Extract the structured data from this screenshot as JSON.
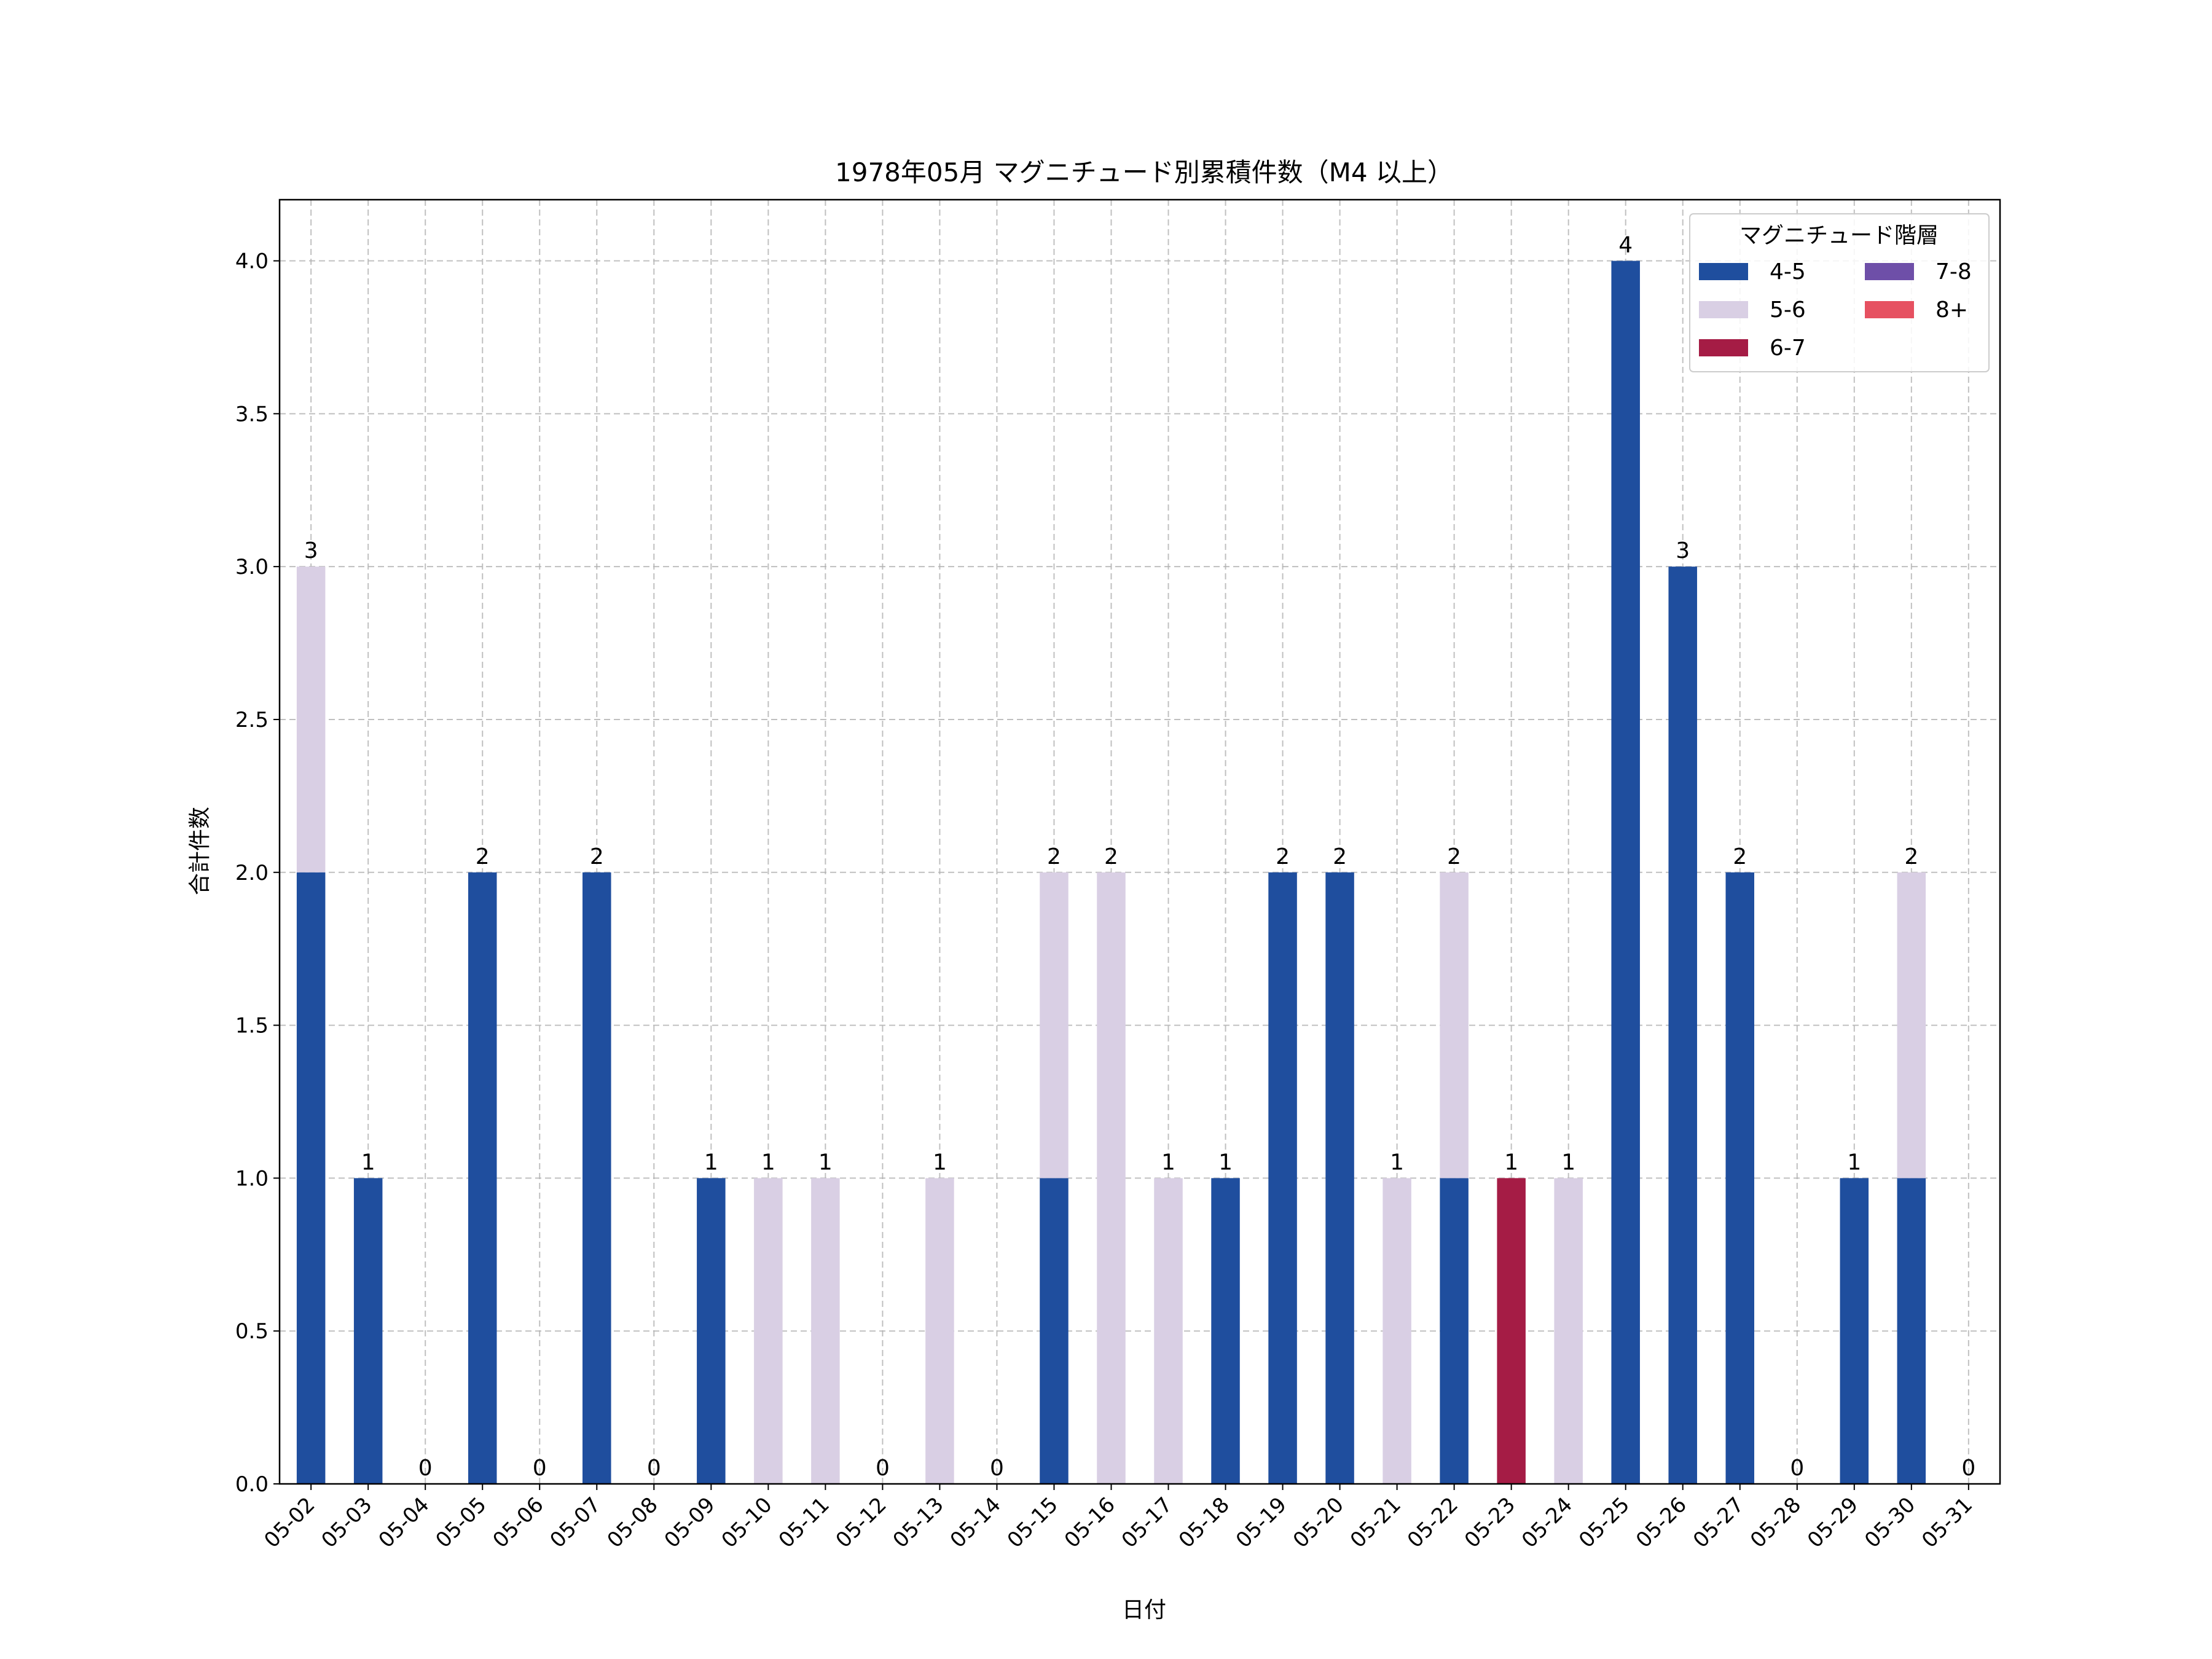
{
  "chart_data": {
    "type": "bar",
    "stacked": true,
    "title": "1978年05月 マグニチュード別累積件数（M4 以上）",
    "xlabel": "日付",
    "ylabel": "合計件数",
    "ylim": [
      0,
      4.2
    ],
    "yticks": [
      "0.0",
      "0.5",
      "1.0",
      "1.5",
      "2.0",
      "2.5",
      "3.0",
      "3.5",
      "4.0"
    ],
    "grid": true,
    "legend": {
      "title": "マグニチュード階層",
      "placement": "top-right",
      "columns": 2
    },
    "categories": [
      "05-02",
      "05-03",
      "05-04",
      "05-05",
      "05-06",
      "05-07",
      "05-08",
      "05-09",
      "05-10",
      "05-11",
      "05-12",
      "05-13",
      "05-14",
      "05-15",
      "05-16",
      "05-17",
      "05-18",
      "05-19",
      "05-20",
      "05-21",
      "05-22",
      "05-23",
      "05-24",
      "05-25",
      "05-26",
      "05-27",
      "05-28",
      "05-29",
      "05-30",
      "05-31"
    ],
    "series": [
      {
        "name": "4-5",
        "color": "#1f4e9e",
        "values": [
          2,
          1,
          0,
          2,
          0,
          2,
          0,
          1,
          0,
          0,
          0,
          0,
          0,
          1,
          0,
          0,
          1,
          2,
          2,
          0,
          1,
          0,
          0,
          4,
          3,
          2,
          0,
          1,
          1,
          0
        ]
      },
      {
        "name": "5-6",
        "color": "#d9cfe4",
        "values": [
          1,
          0,
          0,
          0,
          0,
          0,
          0,
          0,
          1,
          1,
          0,
          1,
          0,
          1,
          2,
          1,
          0,
          0,
          0,
          1,
          1,
          0,
          1,
          0,
          0,
          0,
          0,
          0,
          1,
          0
        ]
      },
      {
        "name": "6-7",
        "color": "#a51c45",
        "values": [
          0,
          0,
          0,
          0,
          0,
          0,
          0,
          0,
          0,
          0,
          0,
          0,
          0,
          0,
          0,
          0,
          0,
          0,
          0,
          0,
          0,
          1,
          0,
          0,
          0,
          0,
          0,
          0,
          0,
          0
        ]
      },
      {
        "name": "7-8",
        "color": "#6e4fa8",
        "values": [
          0,
          0,
          0,
          0,
          0,
          0,
          0,
          0,
          0,
          0,
          0,
          0,
          0,
          0,
          0,
          0,
          0,
          0,
          0,
          0,
          0,
          0,
          0,
          0,
          0,
          0,
          0,
          0,
          0,
          0
        ]
      },
      {
        "name": "8+",
        "color": "#e65161",
        "values": [
          0,
          0,
          0,
          0,
          0,
          0,
          0,
          0,
          0,
          0,
          0,
          0,
          0,
          0,
          0,
          0,
          0,
          0,
          0,
          0,
          0,
          0,
          0,
          0,
          0,
          0,
          0,
          0,
          0,
          0
        ]
      }
    ],
    "totals": [
      3,
      1,
      0,
      2,
      0,
      2,
      0,
      1,
      1,
      1,
      0,
      1,
      0,
      2,
      2,
      1,
      1,
      2,
      2,
      1,
      2,
      1,
      1,
      4,
      3,
      2,
      0,
      1,
      2,
      0
    ]
  }
}
